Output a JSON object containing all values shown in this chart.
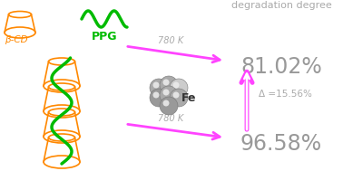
{
  "bg_color": "#ffffff",
  "arrow_color": "#ff44ff",
  "beta_cd_color": "#ff8800",
  "ppg_color": "#00bb00",
  "fe_color_dark": "#999999",
  "fe_color_light": "#cccccc",
  "fe_color_highlight": "#eeeeee",
  "text_color": "#aaaaaa",
  "percent_color": "#999999",
  "fe_text_color": "#333333",
  "title_text": "degradation degree",
  "top_percent": "81.02%",
  "bot_percent": "96.58%",
  "delta_text": "Δ =15.56%",
  "top_label": "780 K",
  "bot_label": "780 K",
  "fe_label": "Fe",
  "beta_label": "β-CD",
  "ppg_label": "PPG",
  "fig_width": 3.78,
  "fig_height": 1.89,
  "dpi": 100
}
